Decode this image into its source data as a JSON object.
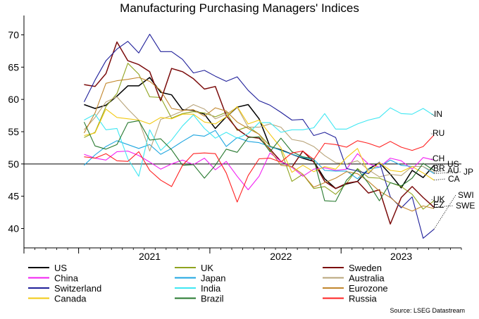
{
  "chart_data": {
    "type": "line",
    "title": "Manufacturing Purchasing Managers' Indices",
    "source": "Source: LSEG Datastream",
    "x": [
      "2020-08",
      "2020-09",
      "2020-10",
      "2020-11",
      "2020-12",
      "2021-01",
      "2021-02",
      "2021-03",
      "2021-04",
      "2021-05",
      "2021-06",
      "2021-07",
      "2021-08",
      "2021-09",
      "2021-10",
      "2021-11",
      "2021-12",
      "2022-01",
      "2022-02",
      "2022-03",
      "2022-04",
      "2022-05",
      "2022-06",
      "2022-07",
      "2022-08",
      "2022-09",
      "2022-10",
      "2022-11",
      "2022-12",
      "2023-01",
      "2023-02",
      "2023-03",
      "2023-04",
      "2023-05",
      "2023-06",
      "2023-07",
      "2023-08",
      "2023-09",
      "2023-10",
      "2023-11"
    ],
    "x_ticks": [
      {
        "label": "2021",
        "at": "2021-07"
      },
      {
        "label": "2022",
        "at": "2022-07"
      },
      {
        "label": "2023",
        "at": "2023-06"
      }
    ],
    "y_ticks": [
      "40",
      "45",
      "50",
      "55",
      "60",
      "65",
      "70"
    ],
    "ylim": [
      37,
      73
    ],
    "reference_line": 50,
    "grid": false,
    "legend_position": "bottom",
    "series": [
      {
        "name": "US",
        "color": "#000000",
        "values": [
          null,
          null,
          null,
          null,
          null,
          59.2,
          58.6,
          59.1,
          60.5,
          62.1,
          62.1,
          63.4,
          61.1,
          60.7,
          58.4,
          58.3,
          57.7,
          55.5,
          57.3,
          58.8,
          59.2,
          57.0,
          52.7,
          52.2,
          51.5,
          50.9,
          50.4,
          47.7,
          46.2,
          46.9,
          47.3,
          49.2,
          50.2,
          48.4,
          46.3,
          49.0,
          47.9,
          49.8,
          null,
          null
        ],
        "end_label": "US"
      },
      {
        "name": "UK",
        "color": "#8fa31f",
        "values": [
          null,
          null,
          null,
          null,
          null,
          54.1,
          54.9,
          58.9,
          60.9,
          65.6,
          63.9,
          60.4,
          60.3,
          57.1,
          57.8,
          58.1,
          57.9,
          57.3,
          58.0,
          55.2,
          55.8,
          54.6,
          52.8,
          52.1,
          47.3,
          48.4,
          46.2,
          46.5,
          45.3,
          47.0,
          49.3,
          47.9,
          47.8,
          47.1,
          46.5,
          45.3,
          43.0,
          44.3,
          null,
          null
        ],
        "end_label": "UK"
      },
      {
        "name": "Sweden",
        "color": "#7b0c0c",
        "values": [
          null,
          null,
          null,
          null,
          null,
          62.3,
          62.0,
          64.0,
          68.9,
          66.0,
          65.4,
          64.3,
          59.8,
          64.8,
          64.3,
          63.2,
          61.6,
          62.0,
          57.5,
          55.4,
          54.2,
          54.0,
          52.3,
          50.4,
          49.5,
          52.0,
          50.3,
          47.3,
          46.2,
          47.0,
          47.3,
          45.5,
          46.0,
          40.7,
          44.8,
          46.5,
          44.8,
          43.3,
          null,
          null
        ],
        "end_label": "SWE"
      },
      {
        "name": "China",
        "color": "#f21ff2",
        "values": [
          null,
          null,
          null,
          null,
          null,
          51.5,
          50.9,
          50.6,
          51.9,
          52.0,
          51.3,
          50.3,
          49.2,
          50.0,
          50.6,
          49.9,
          50.9,
          49.1,
          50.4,
          48.1,
          46.0,
          48.1,
          51.7,
          50.4,
          49.5,
          48.1,
          49.2,
          49.4,
          49.0,
          49.2,
          51.6,
          50.0,
          49.5,
          50.9,
          50.5,
          49.2,
          51.0,
          50.6,
          null,
          null
        ],
        "end_label": "CH"
      },
      {
        "name": "Japan",
        "color": "#1ea6e0",
        "values": [
          null,
          null,
          null,
          null,
          null,
          49.8,
          51.4,
          52.7,
          53.6,
          53.0,
          52.4,
          53.0,
          51.5,
          52.4,
          53.5,
          54.5,
          54.3,
          55.2,
          52.7,
          54.1,
          53.5,
          53.3,
          52.7,
          52.1,
          51.5,
          51.0,
          50.7,
          49.0,
          48.9,
          48.9,
          47.7,
          49.2,
          49.5,
          50.6,
          49.8,
          49.6,
          49.6,
          48.5,
          null,
          null
        ],
        "end_label": "JP"
      },
      {
        "name": "Australia",
        "color": "#b8a47a",
        "values": [
          null,
          null,
          null,
          null,
          null,
          55.3,
          57.2,
          59.6,
          60.4,
          58.5,
          56.8,
          52.0,
          56.9,
          57.5,
          58.2,
          59.2,
          58.5,
          57.0,
          57.7,
          58.8,
          55.7,
          55.7,
          56.2,
          55.7,
          53.8,
          53.5,
          52.7,
          51.3,
          50.2,
          50.0,
          50.5,
          49.1,
          48.0,
          48.4,
          48.2,
          49.6,
          49.6,
          48.7,
          null,
          null
        ],
        "end_label": "AU"
      },
      {
        "name": "Switzerland",
        "color": "#20209a",
        "values": [
          null,
          null,
          null,
          null,
          null,
          59.6,
          63.0,
          66.0,
          67.8,
          69.0,
          67.2,
          70.1,
          67.4,
          67.4,
          66.2,
          64.1,
          64.5,
          63.6,
          62.8,
          63.5,
          61.4,
          59.8,
          59.1,
          58.0,
          56.8,
          56.9,
          54.4,
          54.9,
          54.1,
          49.3,
          48.9,
          48.5,
          50.3,
          44.9,
          43.2,
          44.9,
          38.5,
          39.9,
          null,
          null
        ],
        "end_label": "SWI"
      },
      {
        "name": "India",
        "color": "#3fe7f2",
        "values": [
          null,
          null,
          null,
          null,
          null,
          56.8,
          57.7,
          55.3,
          55.5,
          50.8,
          48.1,
          55.3,
          52.1,
          53.7,
          55.9,
          57.6,
          55.5,
          54.0,
          54.9,
          54.0,
          54.7,
          56.4,
          56.4,
          54.9,
          55.3,
          55.3,
          55.6,
          57.8,
          55.4,
          55.4,
          56.2,
          56.8,
          57.2,
          58.7,
          57.8,
          57.7,
          58.6,
          57.5,
          null,
          null
        ],
        "end_label": "IN"
      },
      {
        "name": "Eurozone",
        "color": "#c2862c",
        "values": [
          null,
          null,
          null,
          null,
          null,
          54.8,
          57.9,
          62.5,
          62.9,
          63.1,
          63.4,
          62.8,
          61.4,
          58.6,
          58.3,
          58.4,
          57.4,
          58.7,
          58.2,
          56.5,
          55.5,
          54.6,
          52.1,
          49.8,
          49.6,
          48.4,
          46.4,
          47.1,
          47.8,
          48.8,
          48.5,
          47.3,
          45.8,
          44.8,
          43.4,
          42.7,
          43.5,
          43.1,
          null,
          null
        ],
        "end_label": "EZ"
      },
      {
        "name": "Canada",
        "color": "#f2c912",
        "values": [
          null,
          null,
          null,
          null,
          null,
          54.4,
          54.8,
          58.5,
          57.2,
          57.0,
          56.8,
          56.2,
          57.2,
          57.0,
          57.7,
          57.7,
          56.5,
          56.2,
          57.3,
          58.9,
          56.2,
          56.8,
          54.6,
          52.5,
          48.7,
          49.8,
          48.8,
          49.6,
          49.2,
          51.0,
          52.4,
          48.6,
          50.2,
          49.0,
          48.8,
          49.6,
          48.6,
          47.5,
          null,
          null
        ],
        "end_label": "CA"
      },
      {
        "name": "Brazil",
        "color": "#26782e",
        "values": [
          null,
          null,
          null,
          null,
          null,
          56.5,
          52.8,
          52.3,
          53.0,
          56.4,
          56.7,
          53.7,
          53.9,
          52.2,
          49.8,
          49.9,
          47.8,
          49.8,
          52.3,
          51.8,
          54.1,
          54.2,
          51.9,
          54.0,
          51.9,
          51.1,
          50.8,
          44.3,
          44.2,
          47.5,
          49.2,
          47.0,
          44.3,
          47.1,
          46.6,
          47.8,
          50.1,
          49.0,
          null,
          null
        ],
        "end_label": "BR"
      },
      {
        "name": "Russia",
        "color": "#ff2020",
        "values": [
          null,
          null,
          null,
          null,
          null,
          51.1,
          50.9,
          51.6,
          50.5,
          50.4,
          51.9,
          49.0,
          47.5,
          46.5,
          49.8,
          51.6,
          51.7,
          51.6,
          48.6,
          44.1,
          48.2,
          50.8,
          50.9,
          50.3,
          51.7,
          52.0,
          50.7,
          53.2,
          53.0,
          52.6,
          53.6,
          53.2,
          52.6,
          53.5,
          52.6,
          52.1,
          52.7,
          54.5,
          null,
          null
        ],
        "end_label": "RU"
      }
    ]
  }
}
